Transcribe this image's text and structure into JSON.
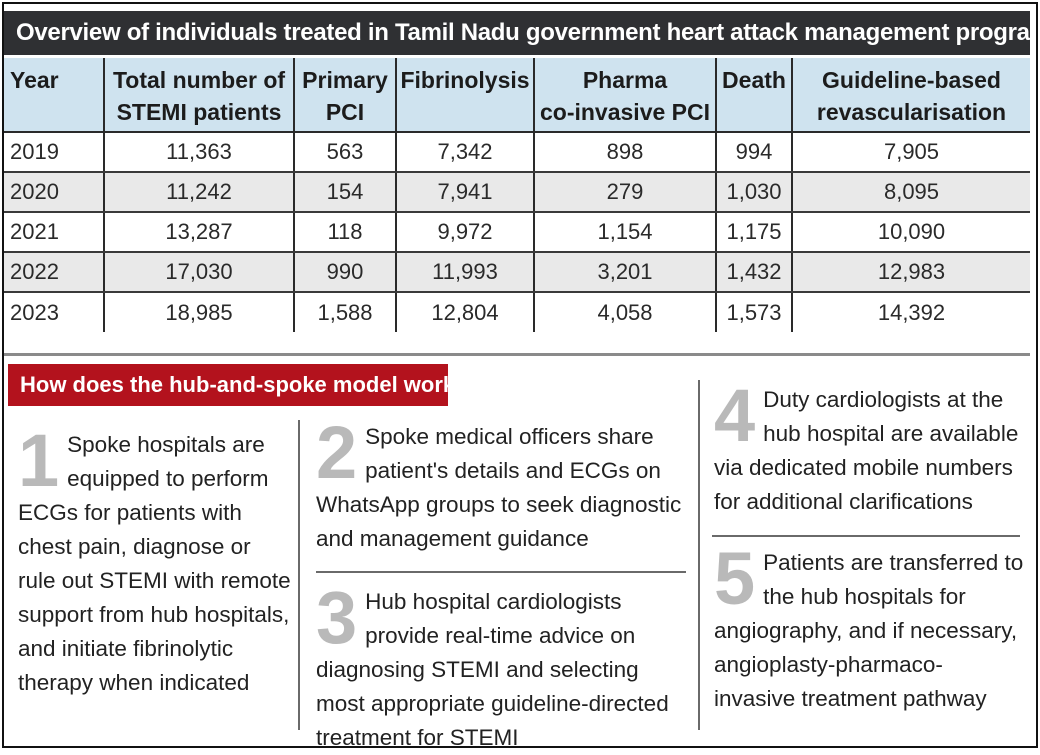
{
  "title": "Overview of individuals treated in Tamil Nadu government heart attack management programme hubs",
  "table": {
    "headers": [
      [
        "Year"
      ],
      [
        "Total number of",
        "STEMI patients"
      ],
      [
        "Primary",
        "PCI"
      ],
      [
        "Fibrinolysis"
      ],
      [
        "Pharma",
        "co-invasive PCI"
      ],
      [
        "Death"
      ],
      [
        "Guideline-based",
        "revascularisation"
      ]
    ],
    "rows": [
      [
        "2019",
        "11,363",
        "563",
        "7,342",
        "898",
        "994",
        "7,905"
      ],
      [
        "2020",
        "11,242",
        "154",
        "7,941",
        "279",
        "1,030",
        "8,095"
      ],
      [
        "2021",
        "13,287",
        "118",
        "9,972",
        "1,154",
        "1,175",
        "10,090"
      ],
      [
        "2022",
        "17,030",
        "990",
        "11,993",
        "3,201",
        "1,432",
        "12,983"
      ],
      [
        "2023",
        "18,985",
        "1,588",
        "12,804",
        "4,058",
        "1,573",
        "14,392"
      ]
    ]
  },
  "section_title": "How does the hub-and-spoke model work?",
  "steps": [
    {
      "num": "1",
      "text": "Spoke hospitals are equipped to perform ECGs for patients with chest pain, diagnose or rule out STEMI with remote support from hub hospitals, and initiate fibrinolytic therapy when indicated"
    },
    {
      "num": "2",
      "text": "Spoke medical officers share patient's details and ECGs on WhatsApp groups to seek diagnostic and management guidance"
    },
    {
      "num": "3",
      "text": "Hub hospital cardiologists provide real-time advice on diagnosing STEMI and selecting most appropriate guideline-directed treatment for STEMI"
    },
    {
      "num": "4",
      "text": "Duty cardiologists at the hub hospital are available via dedicated mobile numbers for additional clarifications"
    },
    {
      "num": "5",
      "text": "Patients are transferred to the hub hospitals for angiography, and if necessary, angioplasty-pharmaco-invasive treatment pathway"
    }
  ]
}
